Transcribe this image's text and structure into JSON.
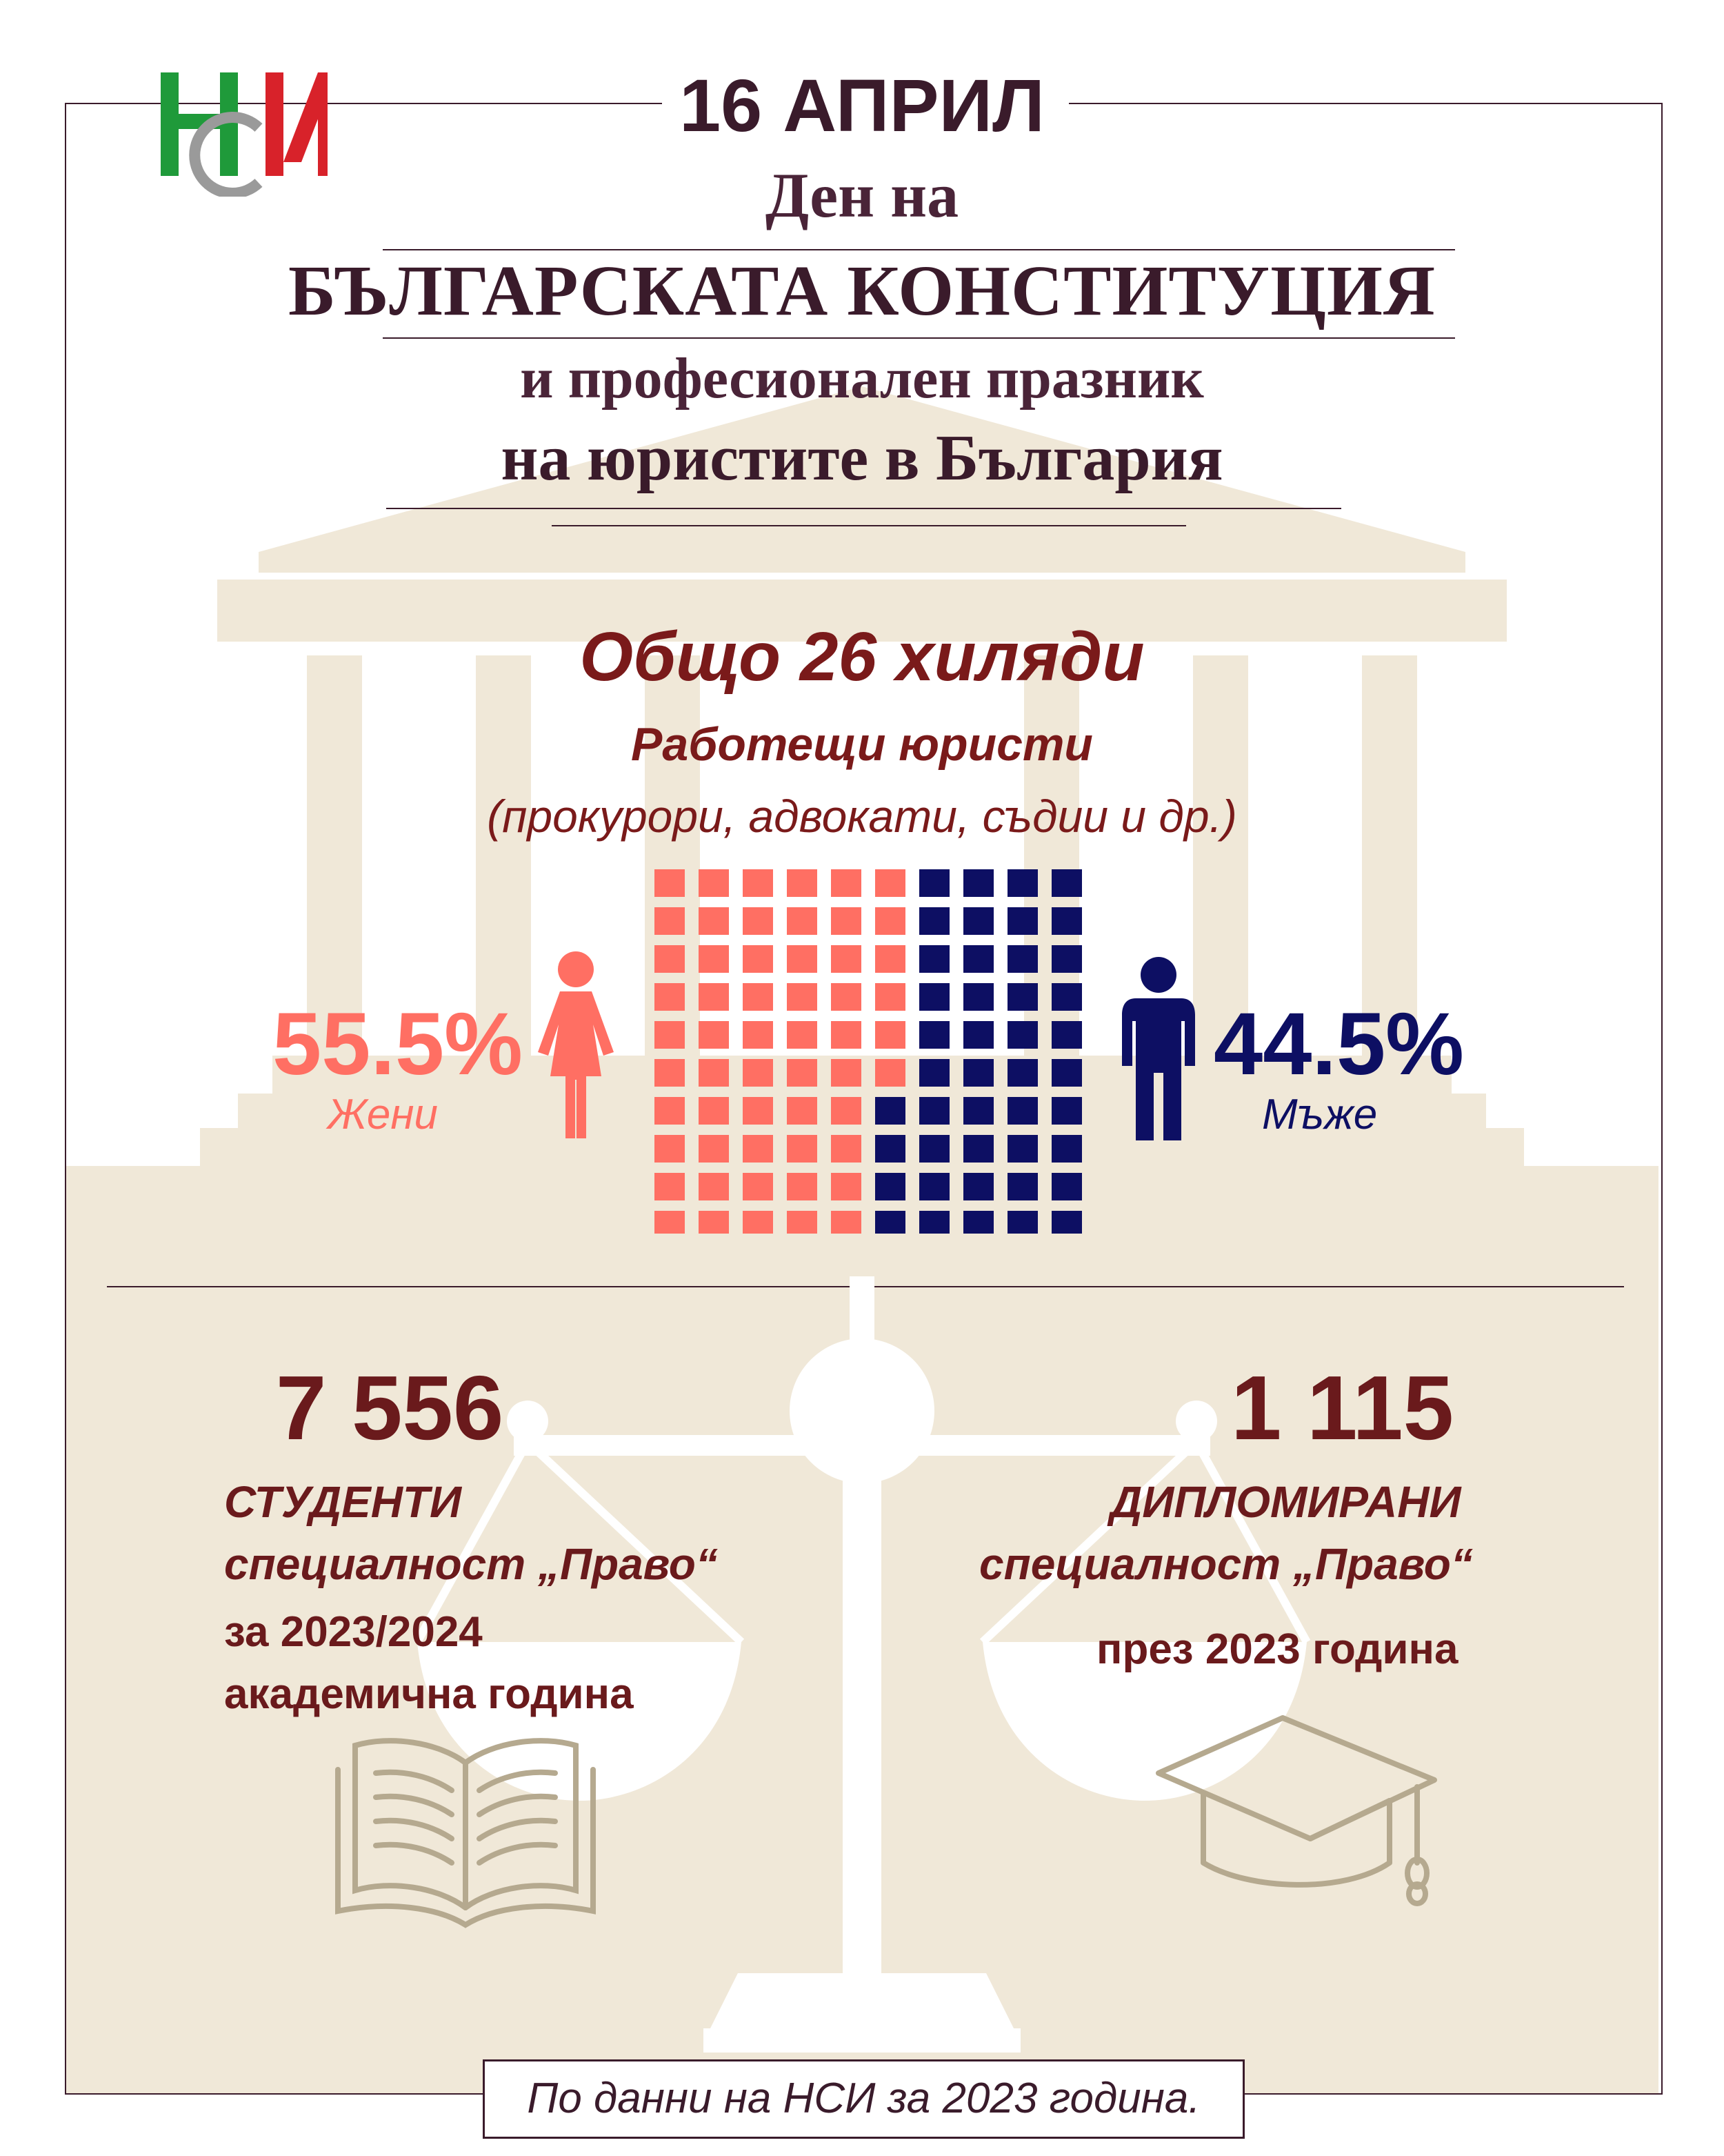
{
  "header": {
    "logo_text": "НСИ",
    "date": "16 АПРИЛ",
    "day_on": "Ден на",
    "constitution": "БЪЛГАРСКАТА КОНСТИТУЦИЯ",
    "holiday_line1": "и професионален празник",
    "holiday_line2": "на юристите в България"
  },
  "total": {
    "headline": "Общо 26 хиляди",
    "label": "Работещи юристи",
    "sublabel": "(прокурори, адвокати, съдии и др.)"
  },
  "gender": {
    "women_pct": "55.5%",
    "women_label": "Жени",
    "men_pct": "44.5%",
    "men_label": "Мъже",
    "women_share": 55.5,
    "men_share": 44.5,
    "women_color": "#ff6f63",
    "men_color": "#0d0f63",
    "women_icon": "woman-icon",
    "men_icon": "man-icon"
  },
  "students": {
    "number": "7 556",
    "title": "СТУДЕНТИ",
    "specialty": "специалност „Право“",
    "year": "за 2023/2024",
    "academic": "академична година",
    "icon": "book-icon"
  },
  "graduates": {
    "number": "1 115",
    "title": "ДИПЛОМИРАНИ",
    "specialty": "специалност „Право“",
    "year": "през 2023 година",
    "icon": "graduation-cap-icon"
  },
  "footer": {
    "source": "По данни на НСИ за 2023 година."
  },
  "colors": {
    "beige": "#f0e8d8",
    "frame": "#3a1b2b",
    "accent_red": "#7a1a1a"
  }
}
